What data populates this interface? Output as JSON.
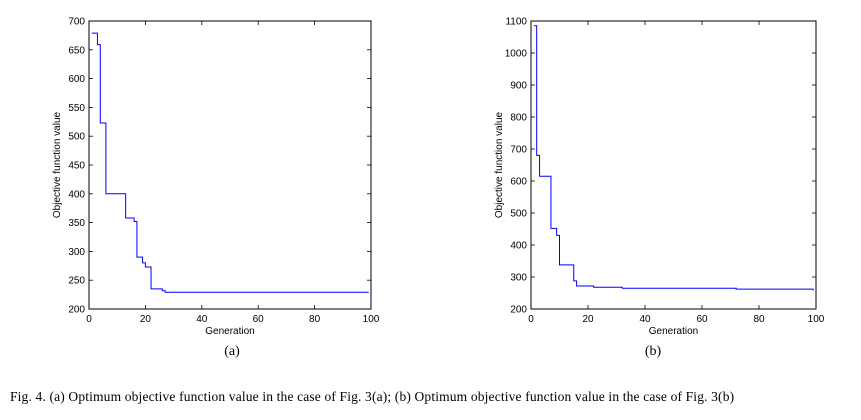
{
  "chart_data": [
    {
      "type": "line",
      "xlabel": "Generation",
      "ylabel": "Objective function value",
      "xlim": [
        0,
        100
      ],
      "ylim": [
        200,
        700
      ],
      "xticks": [
        0,
        20,
        40,
        60,
        80,
        100
      ],
      "yticks": [
        200,
        250,
        300,
        350,
        400,
        450,
        500,
        550,
        600,
        650,
        700
      ],
      "step": true,
      "color": "#0000ff",
      "series": [
        {
          "x": [
            1,
            3,
            4,
            6,
            13,
            16,
            17,
            19,
            20,
            22,
            26,
            27,
            99
          ],
          "y": [
            679,
            659,
            523,
            400,
            358,
            352,
            290,
            280,
            273,
            235,
            232,
            229,
            228
          ]
        }
      ],
      "sublabel": "(a)"
    },
    {
      "type": "line",
      "xlabel": "Generation",
      "ylabel": "Objective function value",
      "xlim": [
        0,
        100
      ],
      "ylim": [
        200,
        1100
      ],
      "xticks": [
        0,
        20,
        40,
        60,
        80,
        100
      ],
      "yticks": [
        200,
        300,
        400,
        500,
        600,
        700,
        800,
        900,
        1000,
        1100
      ],
      "step": true,
      "color": "#0000ff",
      "series": [
        {
          "x": [
            1,
            2,
            3,
            7,
            9,
            10,
            15,
            16,
            22,
            32,
            72,
            99
          ],
          "y": [
            1085,
            680,
            615,
            452,
            430,
            338,
            288,
            272,
            268,
            265,
            262,
            258
          ]
        }
      ],
      "sublabel": "(b)"
    }
  ],
  "caption": "Fig. 4.  (a) Optimum objective function value in the case of Fig. 3(a); (b) Optimum objective function value in the case of Fig. 3(b)"
}
